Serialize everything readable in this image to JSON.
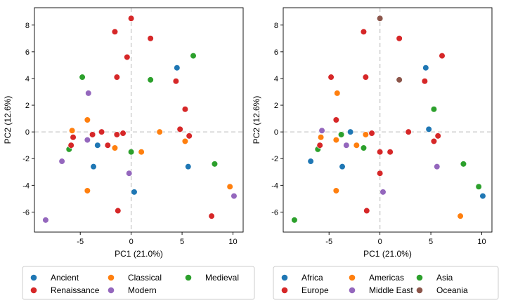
{
  "chart_data": [
    {
      "type": "scatter",
      "xlabel": "PC1 (21.0%)",
      "ylabel": "PC2 (12.6%)",
      "xlim": [
        -9.5,
        11
      ],
      "ylim": [
        -7.5,
        9.3
      ],
      "xticks": [
        -5,
        0,
        5,
        10
      ],
      "yticks": [
        -6,
        -4,
        -2,
        0,
        2,
        4,
        6,
        8
      ],
      "reference_lines": {
        "x": 0,
        "y": 0
      },
      "grid": false,
      "legend": {
        "placement": "bottom",
        "columns": 3
      },
      "series": [
        {
          "name": "Ancient",
          "color": "#1f77b4",
          "points": [
            [
              4.5,
              4.8
            ],
            [
              5.6,
              -2.6
            ],
            [
              -3.7,
              -2.6
            ],
            [
              0.3,
              -4.5
            ],
            [
              -3.3,
              -1.0
            ]
          ]
        },
        {
          "name": "Classical",
          "color": "#ff7f0e",
          "points": [
            [
              -5.8,
              0.1
            ],
            [
              -4.3,
              0.9
            ],
            [
              -4.3,
              -4.4
            ],
            [
              -1.6,
              -1.2
            ],
            [
              1.0,
              -1.5
            ],
            [
              2.8,
              0.0
            ],
            [
              5.3,
              -0.7
            ],
            [
              9.7,
              -4.1
            ]
          ]
        },
        {
          "name": "Medieval",
          "color": "#2ca02c",
          "points": [
            [
              -4.8,
              4.1
            ],
            [
              -6.1,
              -1.3
            ],
            [
              1.9,
              3.9
            ],
            [
              6.1,
              5.7
            ],
            [
              8.2,
              -2.4
            ],
            [
              0.0,
              -1.5
            ]
          ]
        },
        {
          "name": "Renaissance",
          "color": "#d62728",
          "points": [
            [
              0.0,
              8.5
            ],
            [
              -1.6,
              7.5
            ],
            [
              1.9,
              7.0
            ],
            [
              -0.4,
              5.6
            ],
            [
              -1.4,
              4.1
            ],
            [
              4.4,
              3.8
            ],
            [
              5.3,
              1.7
            ],
            [
              4.8,
              0.2
            ],
            [
              5.7,
              -0.3
            ],
            [
              -5.9,
              -1.0
            ],
            [
              -5.7,
              -0.4
            ],
            [
              -3.8,
              -0.2
            ],
            [
              -2.9,
              0.0
            ],
            [
              -2.3,
              -1.0
            ],
            [
              -1.4,
              -0.2
            ],
            [
              -0.8,
              -0.1
            ],
            [
              -1.3,
              -5.9
            ],
            [
              7.9,
              -6.3
            ]
          ]
        },
        {
          "name": "Modern",
          "color": "#9467bd",
          "points": [
            [
              -4.2,
              2.9
            ],
            [
              -4.3,
              -0.6
            ],
            [
              -6.8,
              -2.2
            ],
            [
              -0.2,
              -3.1
            ],
            [
              10.1,
              -4.8
            ],
            [
              -8.4,
              -6.6
            ]
          ]
        }
      ]
    },
    {
      "type": "scatter",
      "xlabel": "PC1 (21.0%)",
      "ylabel": "PC2 (12.6%)",
      "xlim": [
        -9.5,
        11
      ],
      "ylim": [
        -7.5,
        9.3
      ],
      "xticks": [
        -5,
        0,
        5,
        10
      ],
      "yticks": [
        -6,
        -4,
        -2,
        0,
        2,
        4,
        6,
        8
      ],
      "reference_lines": {
        "x": 0,
        "y": 0
      },
      "grid": false,
      "legend": {
        "placement": "bottom",
        "columns": 3
      },
      "series": [
        {
          "name": "Africa",
          "color": "#1f77b4",
          "points": [
            [
              4.5,
              4.8
            ],
            [
              -6.8,
              -2.2
            ],
            [
              -3.7,
              -2.6
            ],
            [
              -2.9,
              0.0
            ],
            [
              4.8,
              0.2
            ],
            [
              10.1,
              -4.8
            ]
          ]
        },
        {
          "name": "Americas",
          "color": "#ff7f0e",
          "points": [
            [
              -4.2,
              2.9
            ],
            [
              -5.8,
              -0.4
            ],
            [
              -4.3,
              -0.6
            ],
            [
              -1.4,
              -0.2
            ],
            [
              -2.3,
              -1.0
            ],
            [
              -4.3,
              -4.4
            ],
            [
              7.9,
              -6.3
            ]
          ]
        },
        {
          "name": "Asia",
          "color": "#2ca02c",
          "points": [
            [
              5.3,
              1.7
            ],
            [
              -6.1,
              -1.3
            ],
            [
              -3.8,
              -0.2
            ],
            [
              -1.6,
              -1.2
            ],
            [
              8.2,
              -2.4
            ],
            [
              9.7,
              -4.1
            ],
            [
              -8.4,
              -6.6
            ]
          ]
        },
        {
          "name": "Europe",
          "color": "#d62728",
          "points": [
            [
              -1.6,
              7.5
            ],
            [
              1.9,
              7.0
            ],
            [
              6.1,
              5.7
            ],
            [
              -4.8,
              4.1
            ],
            [
              -1.4,
              4.1
            ],
            [
              4.4,
              3.8
            ],
            [
              -4.3,
              0.9
            ],
            [
              -5.9,
              -1.0
            ],
            [
              -0.8,
              -0.1
            ],
            [
              2.8,
              0.0
            ],
            [
              5.7,
              -0.3
            ],
            [
              5.3,
              -0.7
            ],
            [
              0.0,
              -1.5
            ],
            [
              1.0,
              -1.5
            ],
            [
              0.0,
              -3.1
            ],
            [
              -1.3,
              -5.9
            ]
          ]
        },
        {
          "name": "Middle East",
          "color": "#9467bd",
          "points": [
            [
              -5.7,
              0.1
            ],
            [
              -3.3,
              -1.0
            ],
            [
              5.6,
              -2.6
            ],
            [
              0.3,
              -4.5
            ]
          ]
        },
        {
          "name": "Oceania",
          "color": "#8c564b",
          "points": [
            [
              0.0,
              8.5
            ],
            [
              1.9,
              3.9
            ]
          ]
        }
      ]
    }
  ]
}
